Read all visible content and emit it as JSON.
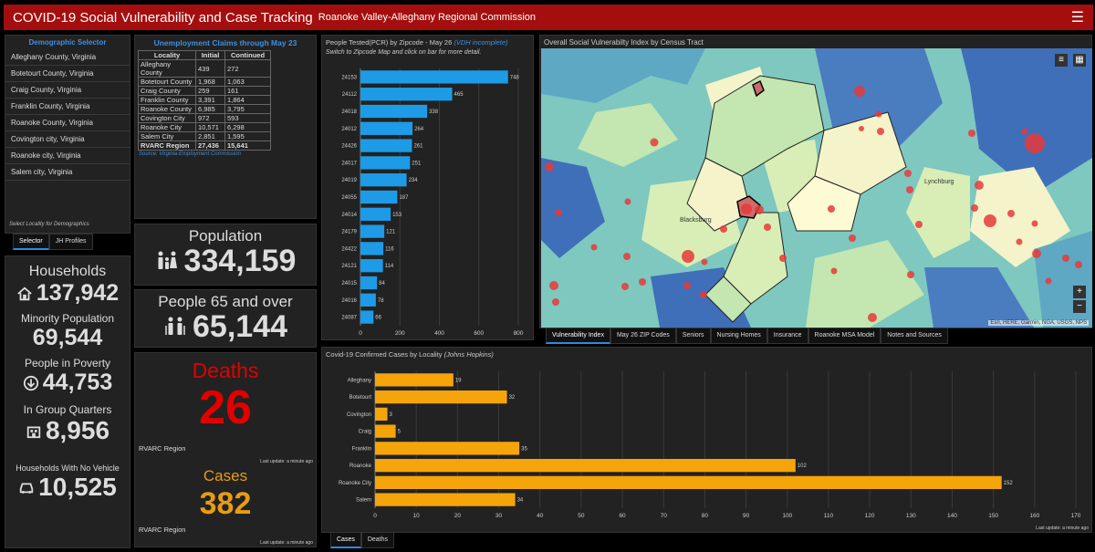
{
  "header": {
    "title": "COVID-19 Social Vulnerability and Case Tracking",
    "subtitle": "Roanoke Valley-Alleghany Regional Commission"
  },
  "demographic_selector": {
    "title": "Demographic Selector",
    "items": [
      "Alleghany County, Virginia",
      "Botetourt County, Virginia",
      "Craig County, Virginia",
      "Franklin County, Virginia",
      "Roanoke County, Virginia",
      "Covington city, Virginia",
      "Roanoke city, Virginia",
      "Salem city, Virginia"
    ],
    "footnote": "Select Locality for Demographics",
    "tabs": [
      "Selector",
      "JH Profiles"
    ]
  },
  "unemployment": {
    "title": "Unemployment Claims through May 23",
    "headers": [
      "Locality",
      "Initial",
      "Continued"
    ],
    "rows": [
      [
        "Alleghany County",
        "439",
        "272"
      ],
      [
        "Botetourt County",
        "1,968",
        "1,063"
      ],
      [
        "Craig County",
        "259",
        "161"
      ],
      [
        "Franklin County",
        "3,391",
        "1,864"
      ],
      [
        "Roanoke County",
        "6,985",
        "3,795"
      ],
      [
        "Covington City",
        "972",
        "593"
      ],
      [
        "Roanoke City",
        "10,571",
        "6,298"
      ],
      [
        "Salem City",
        "2,851",
        "1,595"
      ],
      [
        "RVARC Region",
        "27,436",
        "15,641"
      ]
    ],
    "source": "Source: Virginia Employment Commission"
  },
  "households": {
    "households_label": "Households",
    "households_value": "137,942",
    "minority_label": "Minority Population",
    "minority_value": "69,544",
    "poverty_label": "People in Poverty",
    "poverty_value": "44,753",
    "group_label": "In Group Quarters",
    "group_value": "8,956",
    "vehicle_label": "Households With No Vehicle",
    "vehicle_value": "10,525"
  },
  "population": {
    "label": "Population",
    "value": "334,159"
  },
  "people65": {
    "label": "People 65 and over",
    "value": "65,144"
  },
  "deaths_cases": {
    "deaths_label": "Deaths",
    "deaths_value": "26",
    "region_label": "RVARC Region",
    "last_update": "Last update: a minute ago",
    "cases_label": "Cases",
    "cases_value": "382"
  },
  "tested": {
    "title": "People Tested(PCR) by Zipcode - May 26",
    "title_link": "(VDH incomplete)",
    "hint": "Switch to Zipcode Map and click on bar for more detail."
  },
  "map": {
    "title": "Overall Social Vulnerabilty Index by Census Tract",
    "attribution": "Esri, HERE, Garmin, NGA, USGS, NPS",
    "zoom_in": "+",
    "zoom_out": "−",
    "place_blacksburg": "Blacksburg",
    "place_lynchburg": "Lynchburg",
    "tabs": [
      "Vulnerability Index",
      "May 26 ZIP Codes",
      "Seniors",
      "Nursing Homes",
      "Insurance",
      "Roanoke MSA Model",
      "Notes and Sources"
    ]
  },
  "cases_chart": {
    "title": "Covid-19 Confirmed Cases by Locality",
    "title_source": "(Johns Hopkins)",
    "last_update": "Last update: a minute ago",
    "tabs": [
      "Cases",
      "Deaths"
    ]
  },
  "colors": {
    "header_red": "#a50e0e",
    "bar_blue": "#1e9be6",
    "bar_orange": "#f5a50a",
    "deaths_red": "#e00000",
    "cases_orange": "#e89b14",
    "link_blue": "#3d8fe0"
  },
  "chart_data": [
    {
      "type": "bar",
      "orientation": "horizontal",
      "categories": [
        "24153",
        "24112",
        "24018",
        "24012",
        "24426",
        "24017",
        "24019",
        "24055",
        "24014",
        "24179",
        "24422",
        "24121",
        "24015",
        "24016",
        "24087"
      ],
      "values": [
        748,
        465,
        338,
        264,
        261,
        251,
        234,
        187,
        153,
        121,
        116,
        114,
        84,
        78,
        66
      ],
      "xlim": [
        0,
        800
      ],
      "xticks": [
        0,
        200,
        400,
        600,
        800
      ],
      "color": "#1e9be6"
    },
    {
      "type": "bar",
      "orientation": "horizontal",
      "categories": [
        "Alleghany",
        "Botetourt",
        "Covington",
        "Craig",
        "Franklin",
        "Roanoke",
        "Roanoke City",
        "Salem"
      ],
      "values": [
        19,
        32,
        3,
        5,
        35,
        102,
        152,
        34
      ],
      "xlim": [
        0,
        170
      ],
      "xticks": [
        0,
        10,
        20,
        30,
        40,
        50,
        60,
        70,
        80,
        90,
        100,
        110,
        120,
        130,
        140,
        150,
        160,
        170
      ],
      "color": "#f5a50a"
    }
  ]
}
